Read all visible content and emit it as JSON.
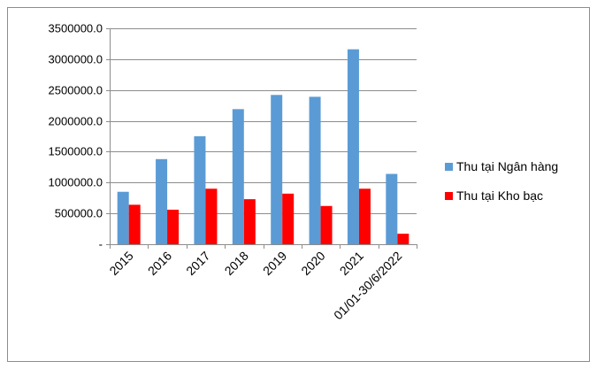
{
  "chart_data": {
    "type": "bar",
    "categories": [
      "2015",
      "2016",
      "2017",
      "2018",
      "2019",
      "2020",
      "2021",
      "01/01-30/6/2022"
    ],
    "series": [
      {
        "name": "Thu tại Ngân hàng",
        "color": "#5B9BD5",
        "values": [
          850000,
          1380000,
          1750000,
          2190000,
          2420000,
          2390000,
          3160000,
          1140000
        ]
      },
      {
        "name": "Thu tại Kho bạc",
        "color": "#FF0000",
        "values": [
          640000,
          560000,
          900000,
          730000,
          820000,
          620000,
          900000,
          170000
        ]
      }
    ],
    "yticks": [
      {
        "value": 0,
        "label": "-"
      },
      {
        "value": 500000,
        "label": "500000.0"
      },
      {
        "value": 1000000,
        "label": "1000000.0"
      },
      {
        "value": 1500000,
        "label": "1500000.0"
      },
      {
        "value": 2000000,
        "label": "2000000.0"
      },
      {
        "value": 2500000,
        "label": "2500000.0"
      },
      {
        "value": 3000000,
        "label": "3000000.0"
      },
      {
        "value": 3500000,
        "label": "3500000.0"
      }
    ],
    "ylim": [
      0,
      3500000
    ],
    "title": "",
    "xlabel": "",
    "ylabel": "",
    "grid": true,
    "legend_position": "right"
  }
}
